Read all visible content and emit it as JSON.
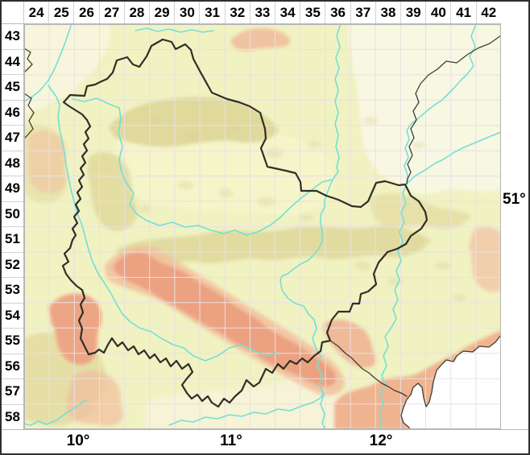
{
  "top_axis": {
    "columns": [
      "24",
      "25",
      "26",
      "27",
      "28",
      "29",
      "30",
      "31",
      "32",
      "33",
      "34",
      "35",
      "36",
      "37",
      "38",
      "39",
      "40",
      "41",
      "42"
    ]
  },
  "left_axis": {
    "rows": [
      "43",
      "44",
      "45",
      "46",
      "47",
      "48",
      "49",
      "50",
      "51",
      "52",
      "53",
      "54",
      "55",
      "56",
      "57",
      "58"
    ]
  },
  "bottom_axis": {
    "labels": [
      "10°",
      "11°",
      "12°"
    ]
  },
  "right_axis": {
    "labels": [
      "51°"
    ]
  },
  "map": {
    "colors": {
      "lowland": "#F2F2C3",
      "plain_light": "#F8F7E2",
      "hills_tan": "#DCD393",
      "mountains_salmon": "#ECA181",
      "mountains_light": "#F2C09E",
      "river": "#72E0D4",
      "grid_line": "#E9E0E2",
      "state_border": "#2F2F26",
      "neighbor_border": "#3E3E36",
      "no_data": "#FFFFFF"
    }
  }
}
